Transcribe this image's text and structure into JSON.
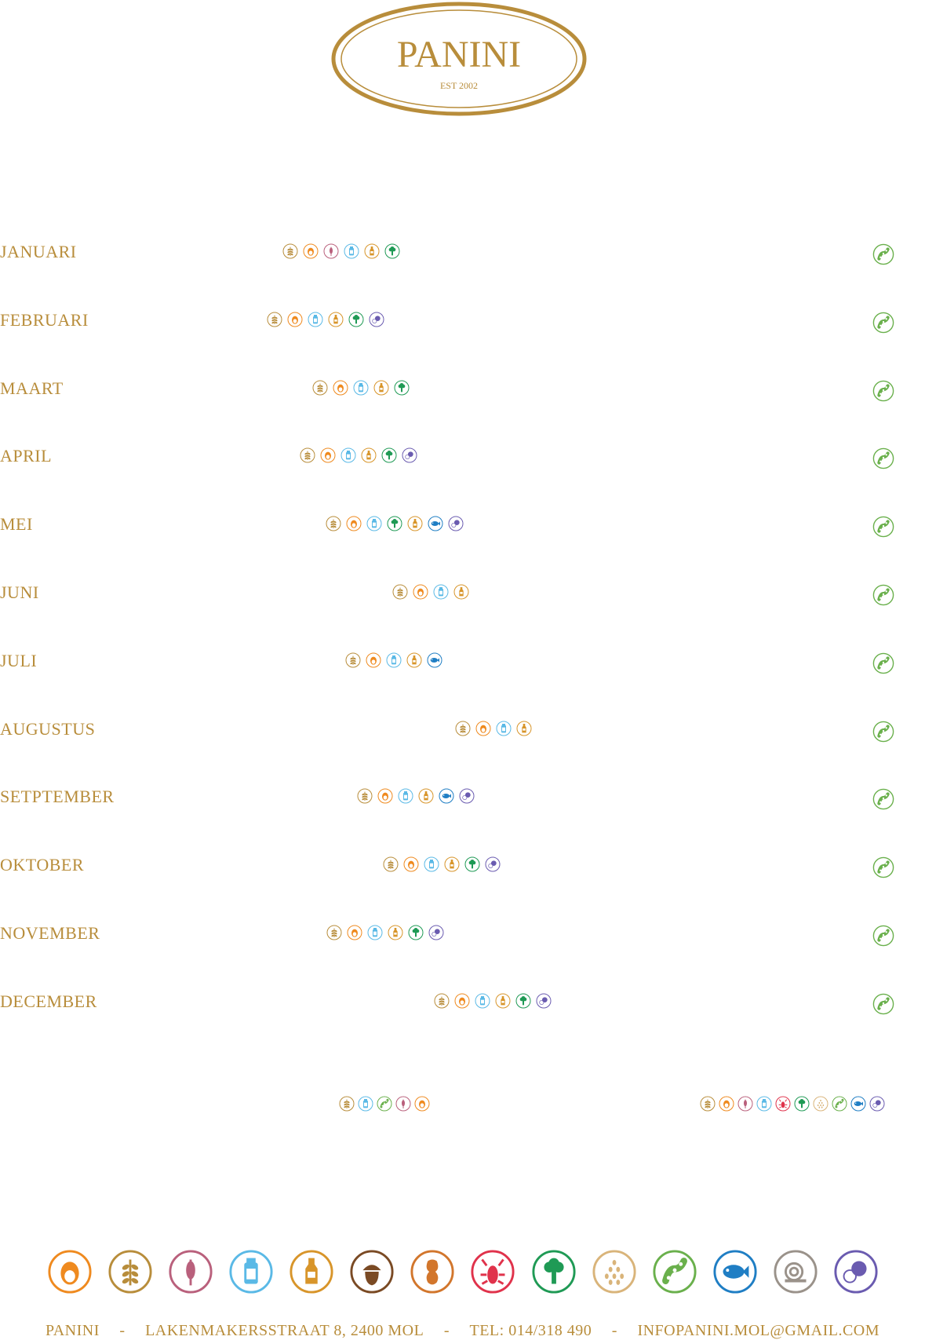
{
  "brand": {
    "name": "PANINI",
    "est": "EST 2002",
    "color": "#b88d3b"
  },
  "months": [
    {
      "name": "JANUARI",
      "icons": [
        "gluten",
        "egg",
        "wheat",
        "milk",
        "mustard",
        "celery"
      ]
    },
    {
      "name": "FEBRUARI",
      "icons": [
        "gluten",
        "egg",
        "milk",
        "mustard",
        "celery",
        "lupin"
      ]
    },
    {
      "name": "MAART",
      "icons": [
        "gluten",
        "egg",
        "milk",
        "mustard",
        "celery"
      ]
    },
    {
      "name": "APRIL",
      "icons": [
        "gluten",
        "egg",
        "milk",
        "mustard",
        "celery",
        "lupin"
      ]
    },
    {
      "name": "MEI",
      "icons": [
        "gluten",
        "egg",
        "milk",
        "celery",
        "mustard",
        "fish",
        "lupin"
      ]
    },
    {
      "name": "JUNI",
      "icons": [
        "gluten",
        "egg",
        "milk",
        "mustard"
      ]
    },
    {
      "name": "JULI",
      "icons": [
        "gluten",
        "egg",
        "milk",
        "mustard",
        "fish"
      ]
    },
    {
      "name": "AUGUSTUS",
      "icons": [
        "gluten",
        "egg",
        "milk",
        "mustard"
      ]
    },
    {
      "name": "SETPTEMBER",
      "icons": [
        "gluten",
        "egg",
        "milk",
        "mustard",
        "fish",
        "lupin"
      ]
    },
    {
      "name": "OKTOBER",
      "icons": [
        "gluten",
        "egg",
        "milk",
        "mustard",
        "celery",
        "lupin"
      ]
    },
    {
      "name": "NOVEMBER",
      "icons": [
        "gluten",
        "egg",
        "milk",
        "mustard",
        "celery",
        "lupin"
      ]
    },
    {
      "name": "DECEMBER",
      "icons": [
        "gluten",
        "egg",
        "milk",
        "mustard",
        "celery",
        "lupin"
      ]
    }
  ],
  "extra_rows": [
    {
      "icons": [
        "gluten",
        "milk",
        "soy",
        "wheat",
        "egg"
      ]
    },
    {
      "icons": [
        "gluten",
        "egg",
        "wheat",
        "milk",
        "crustacean",
        "celery",
        "sesame",
        "soy",
        "fish",
        "lupin"
      ]
    }
  ],
  "legend": [
    "egg",
    "gluten",
    "wheat",
    "milk",
    "mustard",
    "nuts",
    "peanut",
    "crustacean",
    "celery",
    "sesame",
    "soy",
    "fish",
    "mollusc",
    "lupin"
  ],
  "footer": {
    "name": "PANINI",
    "address": "LAKENMAKERSSTRAAT 8, 2400 MOL",
    "tel": "TEL: 014/318 490",
    "email": "INFOPANINI.MOL@GMAIL.COM",
    "sep": "-"
  },
  "colors": {
    "egg": "#ef8a1f",
    "gluten": "#b88d3b",
    "wheat": "#b9607c",
    "milk": "#5ab9e6",
    "mustard": "#d8952a",
    "nuts": "#7a4a24",
    "peanut": "#d2762c",
    "crustacean": "#e0324b",
    "celery": "#1f9a55",
    "sesame": "#d9b47a",
    "soy": "#6ab04c",
    "fish": "#1f7ec4",
    "mollusc": "#9a928a",
    "lupin": "#6a5bb0"
  }
}
